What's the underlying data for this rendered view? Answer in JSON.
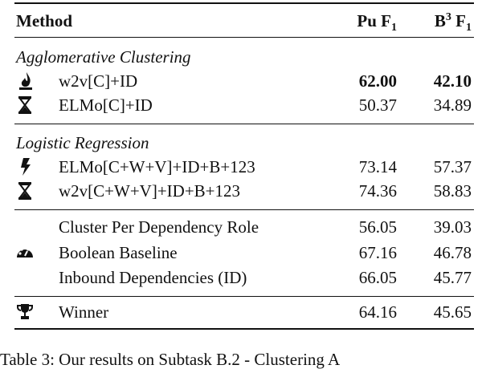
{
  "header": {
    "method": "Method",
    "pu": "Pu F",
    "pu_sub": "1",
    "b3_base": "B",
    "b3_sup": "3",
    "b3": "F",
    "b3_sub": "1"
  },
  "sections": [
    {
      "title": "Agglomerative Clustering",
      "rows": [
        {
          "method": "w2v[C]+ID",
          "pu": "62.00",
          "b3": "42.10"
        },
        {
          "method": "ELMo[C]+ID",
          "pu": "50.37",
          "b3": "34.89"
        }
      ]
    },
    {
      "title": "Logistic Regression",
      "rows": [
        {
          "method": "ELMo[C+W+V]+ID+B+123",
          "pu": "73.14",
          "b3": "57.37"
        },
        {
          "method": "w2v[C+W+V]+ID+B+123",
          "pu": "74.36",
          "b3": "58.83"
        }
      ]
    },
    {
      "rows": [
        {
          "method": "Cluster Per Dependency Role",
          "pu": "56.05",
          "b3": "39.03"
        },
        {
          "method": "Boolean Baseline",
          "pu": "67.16",
          "b3": "46.78"
        },
        {
          "method": "Inbound Dependencies (ID)",
          "pu": "66.05",
          "b3": "45.77"
        }
      ]
    },
    {
      "rows": [
        {
          "method": "Winner",
          "pu": "64.16",
          "b3": "45.65"
        }
      ]
    }
  ],
  "caption": "Table 3: Our results on Subtask B.2 - Clustering A"
}
